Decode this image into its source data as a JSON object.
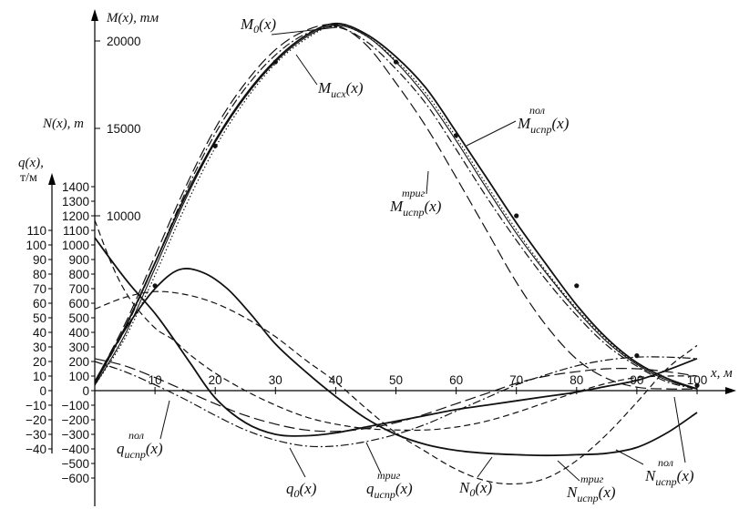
{
  "chart_data": {
    "type": "line",
    "x_axis": {
      "label": "x, м",
      "ticks": [
        "10",
        "20",
        "30",
        "40",
        "50",
        "60",
        "70",
        "80",
        "90",
        "100"
      ],
      "range": [
        0,
        105
      ]
    },
    "m_axis": {
      "label": "M(x), тм",
      "ticks": [
        "20000",
        "15000",
        "10000"
      ],
      "range": [
        0,
        21500
      ]
    },
    "n_axis": {
      "label": "N(x), т",
      "ticks": [
        "1400",
        "1300",
        "1200",
        "1100",
        "1000",
        "900",
        "800",
        "700",
        "600",
        "500",
        "400",
        "300",
        "200",
        "100",
        "0",
        "−100",
        "−200",
        "−300",
        "−400",
        "−500",
        "−600"
      ],
      "range": [
        -650,
        1500
      ]
    },
    "q_axis": {
      "label": "q(x),",
      "unit": "т/м",
      "ticks": [
        "110",
        "100",
        "90",
        "80",
        "70",
        "60",
        "50",
        "40",
        "30",
        "20",
        "10",
        "0",
        "−10",
        "−20",
        "−30",
        "−40"
      ],
      "range": [
        -45,
        125
      ]
    },
    "series": [
      {
        "key": "M0",
        "axis": "M",
        "style": "solid",
        "width": 1.8,
        "x": [
          0,
          5,
          10,
          15,
          20,
          25,
          30,
          35,
          40,
          45,
          50,
          55,
          60,
          65,
          70,
          75,
          80,
          85,
          90,
          95,
          100
        ],
        "y": [
          400,
          3600,
          7300,
          11100,
          14300,
          16900,
          18900,
          20300,
          21000,
          20400,
          19100,
          17300,
          14800,
          12200,
          9600,
          7200,
          4900,
          3000,
          1600,
          700,
          100
        ]
      },
      {
        "key": "M_isx",
        "axis": "M",
        "style": "dotted",
        "width": 1.2,
        "x": [
          0,
          5,
          10,
          15,
          20,
          25,
          30,
          35,
          40,
          45,
          50,
          55,
          60,
          65,
          70,
          75,
          80,
          85,
          90,
          95,
          100
        ],
        "y": [
          300,
          3000,
          6600,
          10500,
          13900,
          16600,
          18700,
          20100,
          20900,
          20300,
          18900,
          17000,
          14500,
          11800,
          9200,
          6800,
          4700,
          2900,
          1500,
          600,
          100
        ]
      },
      {
        "key": "M_ispr_pol",
        "axis": "M",
        "style": "solid",
        "width": 1.1,
        "x": [
          0,
          5,
          10,
          15,
          20,
          25,
          30,
          35,
          40,
          45,
          50,
          55,
          60,
          65,
          70,
          75,
          80,
          85,
          90,
          95,
          100
        ],
        "y": [
          300,
          3200,
          7000,
          10900,
          14200,
          16800,
          18800,
          20200,
          20900,
          20300,
          18800,
          16800,
          14300,
          11600,
          9000,
          6700,
          4600,
          2800,
          1500,
          600,
          100
        ]
      },
      {
        "key": "M_ispr_trig",
        "axis": "M",
        "style": "dashdot",
        "width": 1.2,
        "x": [
          0,
          5,
          10,
          15,
          20,
          25,
          30,
          35,
          40,
          45,
          50,
          55,
          60,
          65,
          70,
          75,
          80,
          85,
          90,
          95,
          100
        ],
        "y": [
          400,
          3500,
          7300,
          11300,
          14700,
          17300,
          19200,
          20400,
          20800,
          20000,
          18400,
          16400,
          13800,
          11100,
          8600,
          6300,
          4300,
          2600,
          1400,
          500,
          100
        ]
      },
      {
        "key": "M_dash",
        "axis": "M",
        "style": "longdash",
        "width": 1.2,
        "x": [
          0,
          5,
          10,
          15,
          20,
          25,
          30,
          35,
          40,
          45,
          50,
          55,
          60,
          65,
          70,
          75,
          80,
          85,
          90,
          95,
          100
        ],
        "y": [
          500,
          3800,
          7700,
          11600,
          15000,
          17600,
          19500,
          20600,
          20900,
          19800,
          17600,
          15100,
          12200,
          9200,
          6200,
          3700,
          1800,
          700,
          200,
          100,
          100
        ]
      },
      {
        "key": "N0",
        "axis": "N",
        "style": "dash",
        "width": 1.2,
        "x": [
          0,
          5,
          10,
          15,
          20,
          25,
          30,
          35,
          40,
          45,
          50,
          55,
          60,
          65,
          70,
          75,
          80,
          85,
          90,
          95,
          100
        ],
        "y": [
          560,
          640,
          680,
          660,
          600,
          500,
          370,
          210,
          60,
          -120,
          -290,
          -420,
          -540,
          -620,
          -640,
          -600,
          -480,
          -300,
          -80,
          150,
          310
        ]
      },
      {
        "key": "N_ispr_pol",
        "axis": "N",
        "style": "solid",
        "width": 1.8,
        "x": [
          0,
          3,
          6,
          10,
          14,
          18,
          22,
          26,
          30,
          35,
          40,
          45,
          50,
          55,
          60,
          65,
          70,
          75,
          80,
          85,
          90,
          95,
          100
        ],
        "y": [
          60,
          280,
          480,
          700,
          830,
          810,
          700,
          520,
          320,
          130,
          -40,
          -190,
          -300,
          -370,
          -410,
          -430,
          -440,
          -445,
          -440,
          -430,
          -390,
          -290,
          -150
        ]
      },
      {
        "key": "N_ispr_trig",
        "axis": "N",
        "style": "dashdot",
        "width": 1.2,
        "x": [
          0,
          5,
          10,
          15,
          20,
          25,
          30,
          35,
          40,
          45,
          50,
          55,
          60,
          65,
          70,
          75,
          80,
          85,
          90,
          95,
          100
        ],
        "y": [
          200,
          130,
          40,
          -60,
          -170,
          -270,
          -340,
          -380,
          -380,
          -350,
          -300,
          -230,
          -140,
          -50,
          40,
          110,
          170,
          210,
          230,
          230,
          220
        ]
      },
      {
        "key": "q0",
        "axis": "q",
        "style": "dash",
        "width": 1.2,
        "x": [
          0,
          3,
          6,
          10,
          13,
          16,
          20,
          25,
          30,
          35,
          40,
          45,
          50,
          55,
          60,
          65,
          70,
          75,
          80,
          85,
          90,
          95,
          100
        ],
        "y": [
          117,
          85,
          62,
          43,
          35,
          24,
          12,
          0,
          -10,
          -18,
          -23,
          -26,
          -27,
          -27,
          -25,
          -21,
          -15,
          -8,
          -1,
          5,
          9,
          10,
          10
        ]
      },
      {
        "key": "q_ispr_pol",
        "axis": "q",
        "style": "solid",
        "width": 1.8,
        "x": [
          0,
          3,
          6,
          10,
          13,
          16,
          20,
          25,
          30,
          35,
          40,
          45,
          50,
          55,
          60,
          65,
          70,
          75,
          80,
          85,
          90,
          95,
          100
        ],
        "y": [
          105,
          88,
          72,
          53,
          36,
          18,
          -5,
          -22,
          -30,
          -31,
          -29,
          -25,
          -21,
          -17,
          -13,
          -10,
          -7,
          -4,
          -1,
          3,
          7,
          14,
          22
        ]
      },
      {
        "key": "q_ispr_trig",
        "axis": "q",
        "style": "longdash",
        "width": 1.2,
        "x": [
          0,
          5,
          10,
          15,
          20,
          25,
          30,
          35,
          40,
          45,
          50,
          55,
          60,
          65,
          70,
          75,
          80,
          85,
          90,
          95,
          100
        ],
        "y": [
          22,
          17,
          9,
          0,
          -9,
          -17,
          -23,
          -27,
          -28,
          -26,
          -22,
          -16,
          -9,
          -2,
          5,
          10,
          13,
          15,
          15,
          13,
          10
        ]
      }
    ],
    "marked_points": {
      "x": [
        10,
        20,
        30,
        40,
        50,
        60,
        70,
        80,
        90,
        100
      ],
      "M": [
        6000,
        14000,
        18800,
        20900,
        18800,
        14600,
        10000,
        6000,
        2000,
        300
      ]
    },
    "annotations": [
      {
        "id": "ann-M0",
        "base": "M",
        "sub": "0",
        "sup": "",
        "arg": "(x)"
      },
      {
        "id": "ann-Misx",
        "base": "M",
        "sub": "исх",
        "sup": "",
        "arg": "(x)"
      },
      {
        "id": "ann-Mpol",
        "base": "M",
        "sub": "испр",
        "sup": "пол",
        "arg": "(x)"
      },
      {
        "id": "ann-Mtrig",
        "base": "M",
        "sub": "испр",
        "sup": "триг",
        "arg": "(x)"
      },
      {
        "id": "ann-qpol",
        "base": "q",
        "sub": "испр",
        "sup": "пол",
        "arg": "(x)"
      },
      {
        "id": "ann-q0",
        "base": "q",
        "sub": "0",
        "sup": "",
        "arg": "(x)"
      },
      {
        "id": "ann-qtrig",
        "base": "q",
        "sub": "испр",
        "sup": "триг",
        "arg": "(x)"
      },
      {
        "id": "ann-N0",
        "base": "N",
        "sub": "0",
        "sup": "",
        "arg": "(x)"
      },
      {
        "id": "ann-Ntrig",
        "base": "N",
        "sub": "испр",
        "sup": "триг",
        "arg": "(x)"
      },
      {
        "id": "ann-Npol",
        "base": "N",
        "sub": "испр",
        "sup": "пол",
        "arg": "(x)"
      }
    ],
    "grid": false,
    "legend": "none"
  }
}
